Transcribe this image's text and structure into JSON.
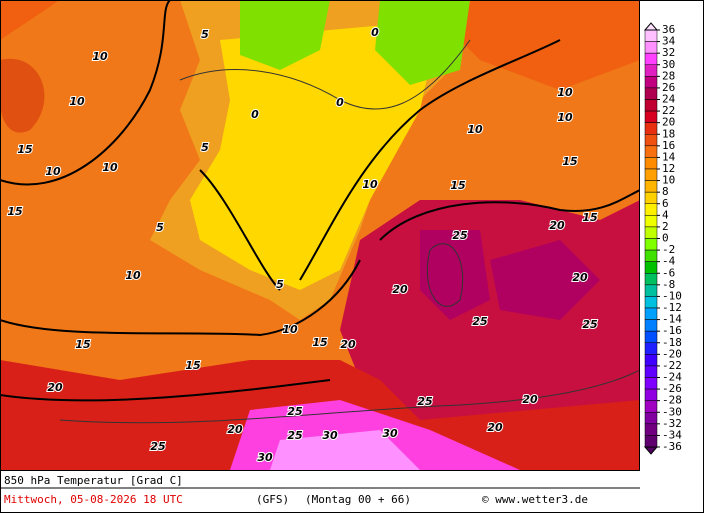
{
  "map": {
    "title": "850 hPa Temperatur [Grad C]",
    "date": "Mittwoch, 05-08-2026  18 UTC",
    "model": "(GFS)",
    "run": "(Montag 00 + 66)",
    "credit": "© www.wetter3.de",
    "colorbar": {
      "ticks": [
        36,
        34,
        32,
        30,
        28,
        26,
        24,
        22,
        20,
        18,
        16,
        14,
        12,
        10,
        8,
        6,
        4,
        2,
        0,
        -2,
        -4,
        -6,
        -8,
        -10,
        -12,
        -14,
        -16,
        -18,
        -20,
        -22,
        -24,
        -26,
        -28,
        -30,
        -32,
        -34,
        -36
      ],
      "colors": [
        "#ffc0ff",
        "#ff90ff",
        "#ff40ff",
        "#e020c0",
        "#c00080",
        "#b00050",
        "#c00030",
        "#d80020",
        "#e83010",
        "#f05010",
        "#f87010",
        "#ff8c00",
        "#ffa000",
        "#ffb400",
        "#ffd000",
        "#fff000",
        "#f0ff00",
        "#c0ff00",
        "#80ff00",
        "#40e000",
        "#00c000",
        "#00c060",
        "#00c0a0",
        "#00c0e0",
        "#00a0ff",
        "#0080ff",
        "#0050ff",
        "#2020ff",
        "#4000ff",
        "#6000ff",
        "#8000ff",
        "#9000e0",
        "#a000c0",
        "#8000a0",
        "#700080",
        "#600070"
      ]
    },
    "contour_labels": [
      10,
      10,
      15,
      10,
      15,
      10,
      5,
      5,
      5,
      10,
      5,
      10,
      15,
      15,
      20,
      20,
      25,
      30,
      30,
      30,
      25,
      25,
      25,
      25,
      20,
      20,
      20,
      25,
      25,
      20,
      20,
      15,
      15,
      10,
      10,
      10,
      10,
      15,
      0,
      0,
      0,
      20,
      15
    ]
  }
}
